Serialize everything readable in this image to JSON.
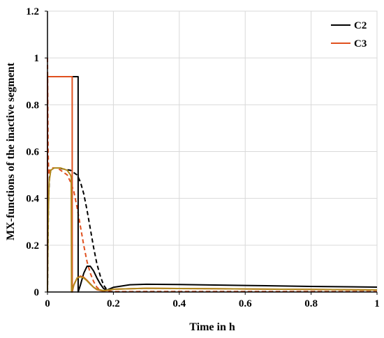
{
  "chart_data": {
    "type": "line",
    "title": "",
    "xlabel": "Time in h",
    "ylabel": "MX-functions of the inactive segment",
    "xlim": [
      0,
      1
    ],
    "ylim": [
      0,
      1.2
    ],
    "grid": true,
    "legend_position": "top-right",
    "x_ticks": [
      "0",
      "0.2",
      "0.4",
      "0.6",
      "0.8",
      "1"
    ],
    "y_ticks": [
      "0",
      "0.2",
      "0.4",
      "0.6",
      "0.8",
      "1",
      "1.2"
    ],
    "colors": {
      "c2": "#000000",
      "c3": "#e0501e",
      "gold": "#b08a1e"
    },
    "series": [
      {
        "name": "C2",
        "color": "#000000",
        "style": "solid",
        "x": [
          0,
          0.0001,
          0.093,
          0.0931,
          0.1,
          0.11,
          0.12,
          0.13,
          0.14,
          0.15,
          0.16,
          0.17,
          0.18,
          0.2,
          0.25,
          0.3,
          0.4,
          0.6,
          0.8,
          1.0
        ],
        "y": [
          0,
          0.92,
          0.92,
          0,
          0.03,
          0.08,
          0.11,
          0.11,
          0.09,
          0.06,
          0.035,
          0.015,
          0.008,
          0.02,
          0.031,
          0.033,
          0.032,
          0.028,
          0.024,
          0.021
        ]
      },
      {
        "name": "C3",
        "color": "#e0501e",
        "style": "solid",
        "x": [
          0,
          0.0001,
          0.075,
          0.0751,
          0.08,
          0.09,
          0.1,
          0.11,
          0.12,
          0.13,
          0.14,
          0.15,
          0.17,
          0.2,
          0.3,
          0.5,
          0.8,
          1.0
        ],
        "y": [
          0,
          0.92,
          0.92,
          0,
          0.03,
          0.06,
          0.068,
          0.063,
          0.05,
          0.035,
          0.02,
          0.01,
          0.004,
          0.012,
          0.016,
          0.014,
          0.011,
          0.009
        ]
      },
      {
        "color": "#b08a1e",
        "style": "solid",
        "x": [
          0,
          0.002,
          0.005,
          0.01,
          0.02,
          0.04,
          0.06,
          0.07,
          0.072,
          0.073,
          0.08,
          0.09,
          0.1,
          0.11,
          0.12,
          0.13,
          0.14,
          0.15,
          0.17,
          0.2,
          0.3,
          0.5,
          0.8,
          1.0
        ],
        "y": [
          0,
          0.3,
          0.47,
          0.52,
          0.53,
          0.53,
          0.52,
          0.5,
          0.49,
          0,
          0.03,
          0.06,
          0.065,
          0.06,
          0.048,
          0.033,
          0.02,
          0.012,
          0.006,
          0.012,
          0.016,
          0.014,
          0.011,
          0.009
        ]
      },
      {
        "color": "#000000",
        "style": "dashed",
        "x": [
          0,
          0.003,
          0.006,
          0.01,
          0.02,
          0.03,
          0.05,
          0.07,
          0.08,
          0.09,
          0.1,
          0.11,
          0.12,
          0.13,
          0.14,
          0.15,
          0.16,
          0.17,
          0.18,
          0.19,
          0.2,
          0.22,
          0.3,
          0.5,
          1.0
        ],
        "y": [
          0,
          0.38,
          0.49,
          0.52,
          0.53,
          0.53,
          0.525,
          0.52,
          0.51,
          0.5,
          0.47,
          0.42,
          0.35,
          0.27,
          0.19,
          0.12,
          0.07,
          0.03,
          0.01,
          0.003,
          0.001,
          0.001,
          0.002,
          0.002,
          0.002
        ]
      },
      {
        "color": "#e0501e",
        "style": "dashed",
        "x": [
          0,
          0.002,
          0.004,
          0.007,
          0.012,
          0.02,
          0.03,
          0.04,
          0.05,
          0.06,
          0.07,
          0.08,
          0.09,
          0.1,
          0.11,
          0.12,
          0.13,
          0.14,
          0.15,
          0.16,
          0.17,
          0.18,
          0.2,
          0.3,
          1.0
        ],
        "y": [
          1.0,
          0.6,
          0.5,
          0.52,
          0.53,
          0.53,
          0.53,
          0.52,
          0.51,
          0.5,
          0.47,
          0.43,
          0.36,
          0.28,
          0.2,
          0.13,
          0.08,
          0.045,
          0.02,
          0.008,
          0.003,
          0.002,
          0.002,
          0.002,
          0.002
        ]
      }
    ]
  }
}
